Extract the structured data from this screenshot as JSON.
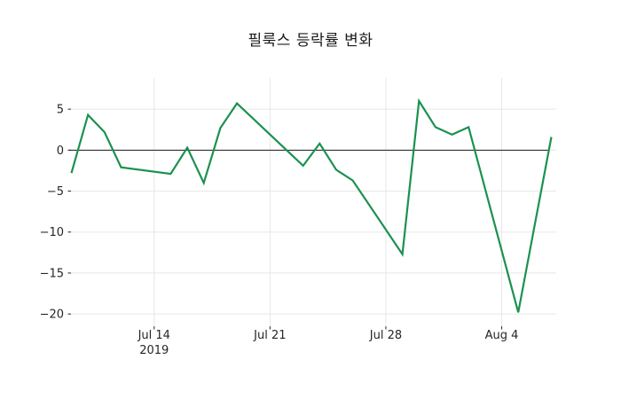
{
  "title": "필룩스 등락률 변화",
  "colors": {
    "background": "#ffffff",
    "line": "#1b9150",
    "grid": "#e7e7e7",
    "zero_line": "#1a1a1a",
    "tick_text": "#262626",
    "title_text": "#1a1a1a"
  },
  "chart_data": {
    "type": "line",
    "title": "필룩스 등락률 변화",
    "xlabel": "",
    "ylabel": "",
    "grid": true,
    "legend": null,
    "zero_line": true,
    "x": [
      "2019-07-09",
      "2019-07-10",
      "2019-07-11",
      "2019-07-12",
      "2019-07-15",
      "2019-07-16",
      "2019-07-17",
      "2019-07-18",
      "2019-07-19",
      "2019-07-22",
      "2019-07-23",
      "2019-07-24",
      "2019-07-25",
      "2019-07-26",
      "2019-07-29",
      "2019-07-30",
      "2019-07-31",
      "2019-08-01",
      "2019-08-02",
      "2019-08-05",
      "2019-08-06",
      "2019-08-07"
    ],
    "values": [
      -2.8,
      4.3,
      2.2,
      -2.1,
      -2.9,
      0.3,
      -4.0,
      2.7,
      5.7,
      0.0,
      -1.9,
      0.8,
      -2.4,
      -3.7,
      -12.7,
      6.0,
      2.8,
      1.9,
      2.8,
      -19.8,
      -9.1,
      1.6
    ],
    "xlim": [
      "2019-07-09",
      "2019-08-07"
    ],
    "ylim": [
      -21.5,
      8.8
    ],
    "yticks": [
      {
        "value": 5,
        "label": "5"
      },
      {
        "value": 0,
        "label": "0"
      },
      {
        "value": -5,
        "label": "−5"
      },
      {
        "value": -10,
        "label": "−10"
      },
      {
        "value": -15,
        "label": "−15"
      },
      {
        "value": -20,
        "label": "−20"
      }
    ],
    "xticks": [
      {
        "date": "2019-07-14",
        "label": "Jul 14",
        "sublabel": "2019"
      },
      {
        "date": "2019-07-21",
        "label": "Jul 21",
        "sublabel": ""
      },
      {
        "date": "2019-07-28",
        "label": "Jul 28",
        "sublabel": ""
      },
      {
        "date": "2019-08-04",
        "label": "Aug 4",
        "sublabel": ""
      }
    ]
  }
}
